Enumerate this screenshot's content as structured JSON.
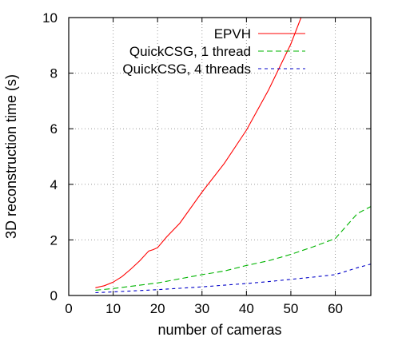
{
  "chart_data": {
    "type": "line",
    "title": "",
    "xlabel": "number of cameras",
    "ylabel": "3D reconstruction time (s)",
    "xlim": [
      0,
      68
    ],
    "ylim": [
      0,
      10
    ],
    "xticks": [
      0,
      10,
      20,
      30,
      40,
      50,
      60
    ],
    "yticks": [
      0,
      2,
      4,
      6,
      8,
      10
    ],
    "grid": true,
    "legend_position": "top-right",
    "series": [
      {
        "name": "EPVH",
        "color": "#ff0000",
        "dash": "solid",
        "x": [
          6,
          8,
          10,
          12,
          14,
          16,
          18,
          19,
          20,
          22,
          25,
          30,
          35,
          40,
          45,
          50,
          52.3
        ],
        "y": [
          0.28,
          0.35,
          0.48,
          0.68,
          0.95,
          1.25,
          1.6,
          1.65,
          1.72,
          2.1,
          2.6,
          3.72,
          4.75,
          5.95,
          7.4,
          9.05,
          10.0
        ]
      },
      {
        "name": "QuickCSG, 1 thread",
        "color": "#00b400",
        "dash": "dashed",
        "x": [
          6,
          10,
          15,
          20,
          25,
          30,
          35,
          40,
          45,
          50,
          55,
          60,
          65,
          68
        ],
        "y": [
          0.19,
          0.25,
          0.35,
          0.45,
          0.6,
          0.75,
          0.88,
          1.08,
          1.25,
          1.48,
          1.75,
          2.05,
          2.95,
          3.2
        ]
      },
      {
        "name": "QuickCSG, 4 threads",
        "color": "#0000c8",
        "dash": "dashed",
        "x": [
          6,
          10,
          15,
          20,
          25,
          30,
          35,
          40,
          45,
          50,
          55,
          60,
          65,
          68
        ],
        "y": [
          0.1,
          0.13,
          0.17,
          0.21,
          0.26,
          0.31,
          0.37,
          0.43,
          0.5,
          0.58,
          0.66,
          0.75,
          1.0,
          1.13
        ]
      }
    ]
  }
}
